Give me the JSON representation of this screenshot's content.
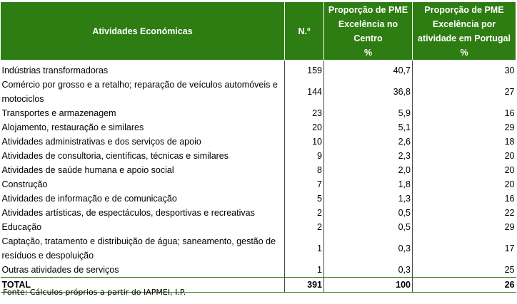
{
  "header": {
    "col_activity": "Atividades Económicas",
    "col_n": "N.º",
    "col_prop_centro": [
      "Proporção de PME",
      "Excelência no",
      "Centro",
      "%"
    ],
    "col_prop_portugal": [
      "Proporção de PME",
      "Excelência por",
      "atividade em Portugal",
      "%"
    ]
  },
  "rows": [
    {
      "activity": "Indústrias transformadoras",
      "n": "159",
      "prop_centro": "40,7",
      "prop_portugal": "30"
    },
    {
      "activity": "Comércio por grosso e a retalho; reparação de veículos automóveis e motociclos",
      "n": "144",
      "prop_centro": "36,8",
      "prop_portugal": "27"
    },
    {
      "activity": "Transportes e armazenagem",
      "n": "23",
      "prop_centro": "5,9",
      "prop_portugal": "16"
    },
    {
      "activity": "Alojamento, restauração e similares",
      "n": "20",
      "prop_centro": "5,1",
      "prop_portugal": "29"
    },
    {
      "activity": "Atividades administrativas e dos serviços de apoio",
      "n": "10",
      "prop_centro": "2,6",
      "prop_portugal": "18"
    },
    {
      "activity": "Atividades de consultoria, científicas, técnicas e similares",
      "n": "9",
      "prop_centro": "2,3",
      "prop_portugal": "20"
    },
    {
      "activity": "Atividades de saúde humana e apoio  social",
      "n": "8",
      "prop_centro": "2,0",
      "prop_portugal": "20"
    },
    {
      "activity": "Construção",
      "n": "7",
      "prop_centro": "1,8",
      "prop_portugal": "20"
    },
    {
      "activity": "Atividades de informação e de comunicação",
      "n": "5",
      "prop_centro": "1,3",
      "prop_portugal": "16"
    },
    {
      "activity": "Atividades artísticas, de espectáculos, desportivas e recreativas",
      "n": "2",
      "prop_centro": "0,5",
      "prop_portugal": "22"
    },
    {
      "activity": "Educação",
      "n": "2",
      "prop_centro": "0,5",
      "prop_portugal": "29"
    },
    {
      "activity": "Captação, tratamento e distribuição de água; saneamento, gestão de resíduos e despoluição",
      "n": "1",
      "prop_centro": "0,3",
      "prop_portugal": "17"
    },
    {
      "activity": "Outras atividades de serviços",
      "n": "1",
      "prop_centro": "0,3",
      "prop_portugal": "25"
    }
  ],
  "total": {
    "label": "TOTAL",
    "n": "391",
    "prop_centro": "100",
    "prop_portugal": "26"
  },
  "source": "Fonte: Cálculos próprios a partir do IAPMEI, I.P.",
  "colors": {
    "header_bg": "#2e7d12",
    "header_text": "#ffffff"
  }
}
